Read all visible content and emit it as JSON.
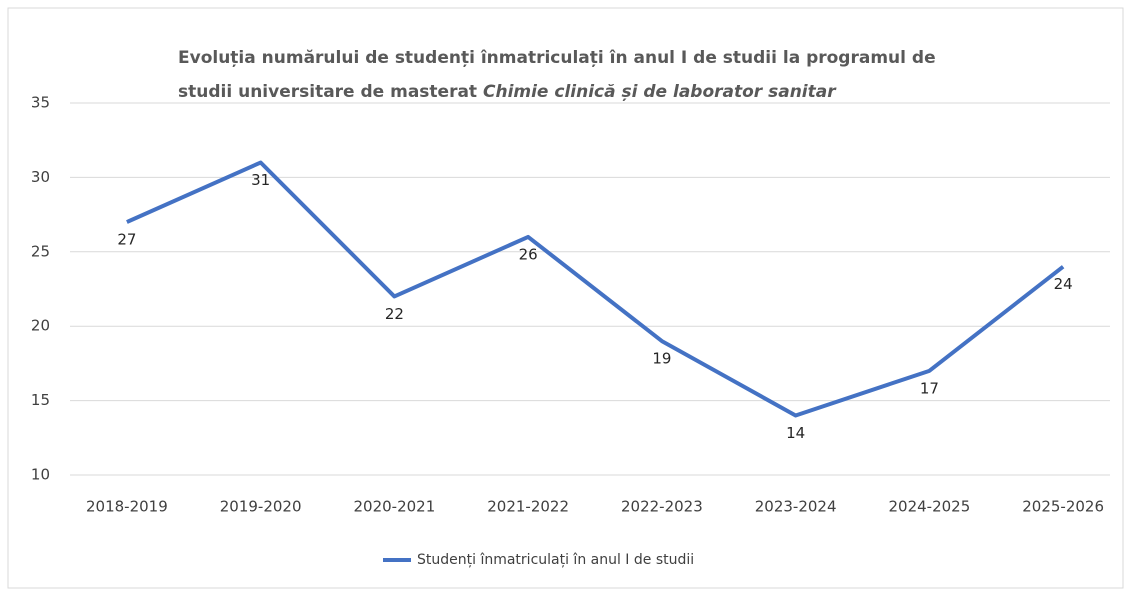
{
  "chart_data": {
    "type": "line",
    "title": {
      "line1": "Evoluția numărului de studenți înmatriculați în anul I de studii la programul de",
      "line2": "studii universitare de masterat",
      "line2_italic": "Chimie clinică și de laborator sanitar"
    },
    "categories": [
      "2018-2019",
      "2019-2020",
      "2020-2021",
      "2021-2022",
      "2022-2023",
      "2023-2024",
      "2024-2025",
      "2025-2026"
    ],
    "series": [
      {
        "name": "Studenți înmatriculați în anul I de studii",
        "color": "#4472c4",
        "values": [
          27,
          31,
          22,
          26,
          19,
          14,
          17,
          24
        ]
      }
    ],
    "ylim": [
      10,
      35
    ],
    "yticks": [
      10,
      15,
      20,
      25,
      30,
      35
    ],
    "grid": true,
    "legend": "bottom"
  }
}
